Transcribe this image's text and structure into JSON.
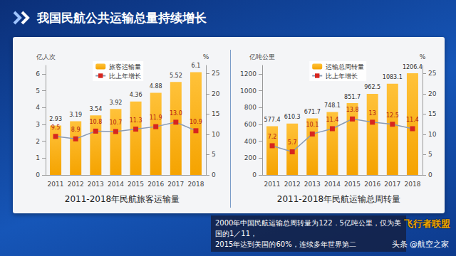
{
  "header": {
    "title": "我国民航公共运输总量持续增长"
  },
  "chart_data": [
    {
      "type": "bar",
      "title": "2011-2018年民航旅客运输量",
      "y_label": "亿人次",
      "y2_label": "%",
      "categories": [
        "2011",
        "2012",
        "2013",
        "2014",
        "2015",
        "2016",
        "2017",
        "2018"
      ],
      "series": [
        {
          "name": "旅客运输量",
          "type": "bar",
          "color": "#f5a300",
          "values": [
            2.93,
            3.19,
            3.54,
            3.92,
            4.36,
            4.88,
            5.52,
            6.1
          ]
        },
        {
          "name": "比上年增长",
          "type": "line",
          "axis": "y2",
          "color": "#d7261e",
          "marker": "square",
          "values": [
            9.5,
            8.9,
            10.8,
            10.7,
            11.3,
            11.9,
            13.0,
            10.9
          ],
          "value_labels": [
            "9.5",
            "8.9",
            "10.8",
            "10.7",
            "11.3",
            "11.9",
            "13.0",
            "10.9"
          ]
        }
      ],
      "ylim": [
        0,
        6.5
      ],
      "yticks": [
        0,
        1,
        2,
        3,
        4,
        5,
        6
      ],
      "y2lim": [
        0,
        27
      ],
      "y2ticks": [
        0,
        5,
        10,
        15,
        20,
        25
      ],
      "data_labels": true,
      "legend": "top",
      "grid": false
    },
    {
      "type": "bar",
      "title": "2011-2018年民航运输总周转量",
      "y_label": "亿吨公里",
      "y2_label": "%",
      "categories": [
        "2011",
        "2012",
        "2013",
        "2014",
        "2015",
        "2016",
        "2017",
        "2018"
      ],
      "series": [
        {
          "name": "运输总周转量",
          "type": "bar",
          "color": "#f5a300",
          "values": [
            577.4,
            610.3,
            671.7,
            748.1,
            851.7,
            962.5,
            1083.1,
            1206.4
          ]
        },
        {
          "name": "比上年增长",
          "type": "line",
          "axis": "y2",
          "color": "#d7261e",
          "marker": "square",
          "values": [
            7.2,
            5.7,
            10.1,
            11.4,
            13.8,
            13,
            12.5,
            11.4
          ]
        }
      ],
      "ylim": [
        0,
        1300
      ],
      "yticks": [
        0,
        200,
        400,
        600,
        800,
        1000,
        1200
      ],
      "y2lim": [
        0,
        27
      ],
      "y2ticks": [
        0,
        5,
        10,
        15,
        20,
        25
      ],
      "data_labels": true,
      "legend": "top",
      "grid": false
    }
  ],
  "caption": [
    "2000年中国民航运输总周转量为122．5亿吨公里，仅为美国的1／11，",
    "2015年达到美国的60%，连续多年世界第二"
  ],
  "watermark": {
    "logo": "飞行者联盟",
    "source": "头条 @航空之家"
  }
}
